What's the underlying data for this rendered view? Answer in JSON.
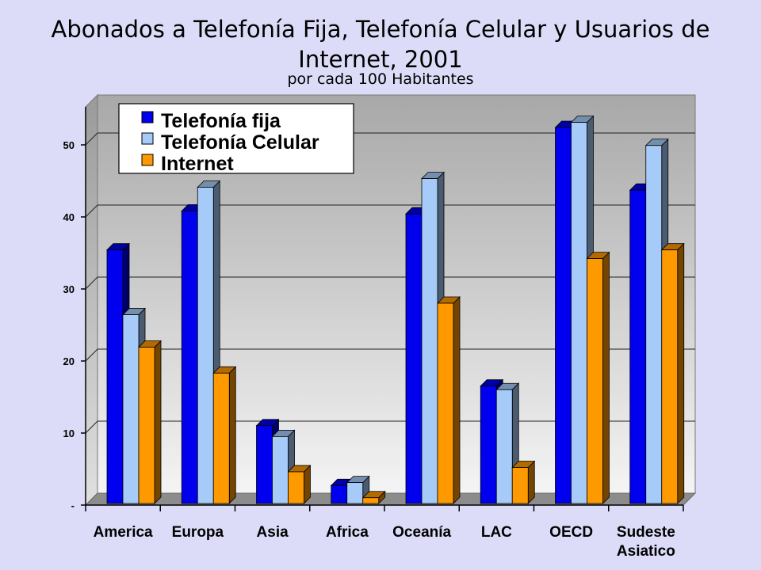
{
  "title_line1": "Abonados a Telefonía Fija, Telefonía Celular y Usuarios de",
  "title_line2": "Internet, 2001",
  "subtitle": "por cada 100 Habitantes",
  "chart_data": {
    "type": "bar",
    "title": "Abonados a Telefonía Fija, Telefonía Celular y Usuarios de Internet, 2001",
    "subtitle": "por cada 100 Habitantes",
    "categories": [
      "America",
      "Europa",
      "Asia",
      "Africa",
      "Oceanía",
      "LAC",
      "OECD",
      "Sudeste Asiatico"
    ],
    "category_lines": [
      [
        "America"
      ],
      [
        "Europa"
      ],
      [
        "Asia"
      ],
      [
        "Africa"
      ],
      [
        "Oceanía"
      ],
      [
        "LAC"
      ],
      [
        "OECD"
      ],
      [
        "Sudeste",
        "Asiatico"
      ]
    ],
    "series": [
      {
        "name": "Telefonía fija",
        "color": "#0000ee",
        "values": [
          35.2,
          40.6,
          10.8,
          2.5,
          40.2,
          16.3,
          52.2,
          43.5
        ]
      },
      {
        "name": "Telefonía Celular",
        "color": "#a6cbf9",
        "values": [
          26.2,
          43.9,
          9.3,
          2.9,
          45.1,
          15.8,
          52.9,
          49.7
        ]
      },
      {
        "name": "Internet",
        "color": "#ff9900",
        "values": [
          21.7,
          18.1,
          4.4,
          0.8,
          27.8,
          5.0,
          34.0,
          35.2
        ]
      }
    ],
    "ylim": [
      0,
      55
    ],
    "yticks": [
      0,
      10,
      20,
      30,
      40,
      50
    ],
    "ytick_labels": [
      "-",
      "10",
      "20",
      "30",
      "40",
      "50"
    ],
    "grid": true,
    "legend_position": "top-left"
  }
}
